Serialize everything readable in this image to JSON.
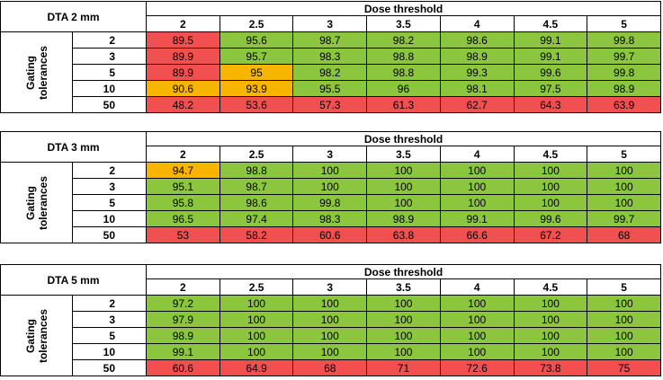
{
  "dose_header": "Dose threshold",
  "gating_label_line1": "Gating",
  "gating_label_line2": "tolerances",
  "thresholds": [
    "2",
    "2.5",
    "3",
    "3.5",
    "4",
    "4.5",
    "5"
  ],
  "colors": {
    "green": "#8cc63f",
    "red": "#f25050",
    "orange": "#f7b500"
  },
  "tables": [
    {
      "dta": "DTA 2 mm",
      "rows": [
        {
          "tol": "2",
          "values": [
            "89.5",
            "95.6",
            "98.7",
            "98.2",
            "98.6",
            "99.1",
            "99.8"
          ],
          "colors": [
            "r",
            "g",
            "g",
            "g",
            "g",
            "g",
            "g"
          ]
        },
        {
          "tol": "3",
          "values": [
            "89.9",
            "95.7",
            "98.3",
            "98.8",
            "98.9",
            "99.1",
            "99.7"
          ],
          "colors": [
            "r",
            "g",
            "g",
            "g",
            "g",
            "g",
            "g"
          ]
        },
        {
          "tol": "5",
          "values": [
            "89.9",
            "95",
            "98.2",
            "98.8",
            "99.3",
            "99.6",
            "99.8"
          ],
          "colors": [
            "r",
            "o",
            "g",
            "g",
            "g",
            "g",
            "g"
          ]
        },
        {
          "tol": "10",
          "values": [
            "90.6",
            "93.9",
            "95.5",
            "96",
            "98.1",
            "97.5",
            "98.9"
          ],
          "colors": [
            "o",
            "o",
            "g",
            "g",
            "g",
            "g",
            "g"
          ]
        },
        {
          "tol": "50",
          "values": [
            "48.2",
            "53.6",
            "57.3",
            "61.3",
            "62.7",
            "64.3",
            "63.9"
          ],
          "colors": [
            "r",
            "r",
            "r",
            "r",
            "r",
            "r",
            "r"
          ]
        }
      ]
    },
    {
      "dta": "DTA 3 mm",
      "rows": [
        {
          "tol": "2",
          "values": [
            "94.7",
            "98.8",
            "100",
            "100",
            "100",
            "100",
            "100"
          ],
          "colors": [
            "o",
            "g",
            "g",
            "g",
            "g",
            "g",
            "g"
          ]
        },
        {
          "tol": "3",
          "values": [
            "95.1",
            "98.7",
            "100",
            "100",
            "100",
            "100",
            "100"
          ],
          "colors": [
            "g",
            "g",
            "g",
            "g",
            "g",
            "g",
            "g"
          ]
        },
        {
          "tol": "5",
          "values": [
            "95.8",
            "98.6",
            "99.8",
            "100",
            "100",
            "100",
            "100"
          ],
          "colors": [
            "g",
            "g",
            "g",
            "g",
            "g",
            "g",
            "g"
          ]
        },
        {
          "tol": "10",
          "values": [
            "96.5",
            "97.4",
            "98.3",
            "98.9",
            "99.1",
            "99.6",
            "99.7"
          ],
          "colors": [
            "g",
            "g",
            "g",
            "g",
            "g",
            "g",
            "g"
          ]
        },
        {
          "tol": "50",
          "values": [
            "53",
            "58.2",
            "60.6",
            "63.8",
            "66.6",
            "67.2",
            "68"
          ],
          "colors": [
            "r",
            "r",
            "r",
            "r",
            "r",
            "r",
            "r"
          ]
        }
      ]
    },
    {
      "dta": "DTA 5 mm",
      "rows": [
        {
          "tol": "2",
          "values": [
            "97.2",
            "100",
            "100",
            "100",
            "100",
            "100",
            "100"
          ],
          "colors": [
            "g",
            "g",
            "g",
            "g",
            "g",
            "g",
            "g"
          ]
        },
        {
          "tol": "3",
          "values": [
            "97.9",
            "100",
            "100",
            "100",
            "100",
            "100",
            "100"
          ],
          "colors": [
            "g",
            "g",
            "g",
            "g",
            "g",
            "g",
            "g"
          ]
        },
        {
          "tol": "5",
          "values": [
            "98.9",
            "100",
            "100",
            "100",
            "100",
            "100",
            "100"
          ],
          "colors": [
            "g",
            "g",
            "g",
            "g",
            "g",
            "g",
            "g"
          ]
        },
        {
          "tol": "10",
          "values": [
            "99.1",
            "100",
            "100",
            "100",
            "100",
            "100",
            "100"
          ],
          "colors": [
            "g",
            "g",
            "g",
            "g",
            "g",
            "g",
            "g"
          ]
        },
        {
          "tol": "50",
          "values": [
            "60.6",
            "64.9",
            "68",
            "71",
            "72.6",
            "73.8",
            "75"
          ],
          "colors": [
            "r",
            "r",
            "r",
            "r",
            "r",
            "r",
            "r"
          ]
        }
      ]
    }
  ]
}
